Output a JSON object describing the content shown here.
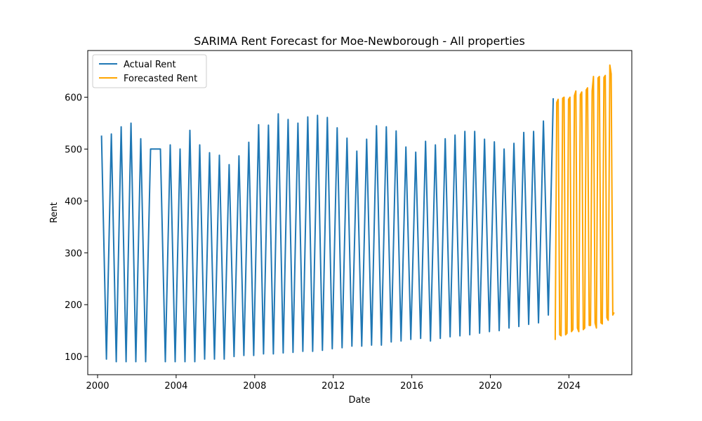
{
  "chart_data": {
    "type": "line",
    "title": "SARIMA Rent Forecast for Moe-Newborough - All properties",
    "xlabel": "Date",
    "ylabel": "Rent",
    "xlim": [
      1999.5,
      2027.2
    ],
    "ylim": [
      65,
      690
    ],
    "x_ticks": [
      2000,
      2004,
      2008,
      2012,
      2016,
      2020,
      2024
    ],
    "y_ticks": [
      100,
      200,
      300,
      400,
      500,
      600
    ],
    "grid": false,
    "legend_position": "top-left",
    "series": [
      {
        "name": "Actual Rent",
        "color": "#1f77b4",
        "x": [
          2000.2,
          2000.45,
          2000.7,
          2000.95,
          2001.2,
          2001.45,
          2001.7,
          2001.95,
          2002.2,
          2002.45,
          2002.7,
          2002.95,
          2003.2,
          2003.45,
          2003.7,
          2003.95,
          2004.2,
          2004.45,
          2004.7,
          2004.95,
          2005.2,
          2005.45,
          2005.7,
          2005.95,
          2006.2,
          2006.45,
          2006.7,
          2006.95,
          2007.2,
          2007.45,
          2007.7,
          2007.95,
          2008.2,
          2008.45,
          2008.7,
          2008.95,
          2009.2,
          2009.45,
          2009.7,
          2009.95,
          2010.2,
          2010.45,
          2010.7,
          2010.95,
          2011.2,
          2011.45,
          2011.7,
          2011.95,
          2012.2,
          2012.45,
          2012.7,
          2012.95,
          2013.2,
          2013.45,
          2013.7,
          2013.95,
          2014.2,
          2014.45,
          2014.7,
          2014.95,
          2015.2,
          2015.45,
          2015.7,
          2015.95,
          2016.2,
          2016.45,
          2016.7,
          2016.95,
          2017.2,
          2017.45,
          2017.7,
          2017.95,
          2018.2,
          2018.45,
          2018.7,
          2018.95,
          2019.2,
          2019.45,
          2019.7,
          2019.95,
          2020.2,
          2020.45,
          2020.7,
          2020.95,
          2021.2,
          2021.45,
          2021.7,
          2021.95,
          2022.2,
          2022.45,
          2022.7,
          2022.95,
          2023.2
        ],
        "values": [
          526,
          95,
          529,
          90,
          543,
          90,
          550,
          90,
          520,
          90,
          500,
          500,
          500,
          90,
          508,
          90,
          500,
          90,
          536,
          90,
          508,
          95,
          493,
          95,
          488,
          95,
          470,
          100,
          487,
          102,
          513,
          102,
          547,
          105,
          546,
          105,
          568,
          107,
          557,
          108,
          550,
          110,
          562,
          110,
          565,
          112,
          561,
          115,
          541,
          117,
          521,
          120,
          496,
          120,
          519,
          122,
          545,
          122,
          543,
          128,
          535,
          130,
          504,
          133,
          494,
          135,
          515,
          130,
          508,
          135,
          520,
          138,
          527,
          140,
          534,
          142,
          534,
          145,
          519,
          148,
          514,
          150,
          500,
          155,
          511,
          158,
          532,
          162,
          534,
          165,
          554,
          180,
          598
        ]
      },
      {
        "name": "Forecasted Rent",
        "color": "#ffa500",
        "x": [
          2023.3,
          2023.45,
          2023.6,
          2023.75,
          2023.9,
          2024.05,
          2024.2,
          2024.35,
          2024.5,
          2024.65,
          2024.8,
          2024.95,
          2025.1,
          2025.25,
          2025.4,
          2025.55,
          2025.7,
          2025.85,
          2026.0,
          2026.15,
          2026.3
        ],
        "values": [
          132,
          596,
          140,
          600,
          145,
          600,
          152,
          612,
          148,
          610,
          155,
          618,
          160,
          640,
          155,
          640,
          163,
          642,
          170,
          645,
          185
        ],
        "extra_x": [
          2023.38,
          2023.53,
          2023.68,
          2023.83,
          2023.98,
          2024.13,
          2024.28,
          2024.43,
          2024.58,
          2024.73,
          2024.88,
          2025.03,
          2025.18,
          2025.33,
          2025.48,
          2025.63,
          2025.78,
          2025.93,
          2026.08,
          2026.23
        ],
        "extra_values": [
          590,
          142,
          598,
          142,
          596,
          148,
          603,
          155,
          605,
          152,
          614,
          160,
          612,
          165,
          637,
          165,
          638,
          175,
          662,
          180
        ]
      }
    ]
  }
}
